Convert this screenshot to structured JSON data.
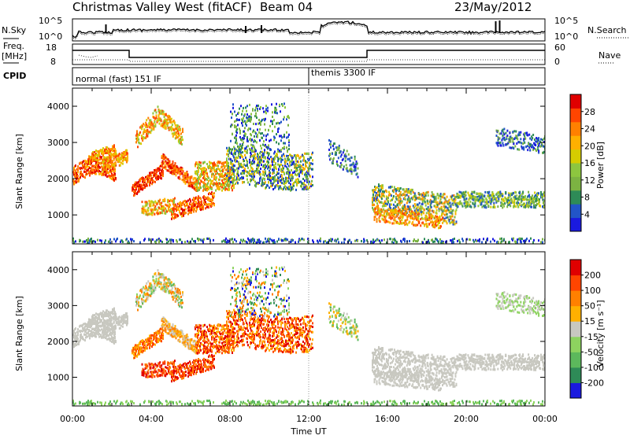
{
  "header": {
    "title": "Christmas Valley West (fitACF)",
    "beam": "Beam 04",
    "date": "23/May/2012"
  },
  "nsky_panel": {
    "left_label": "N.Sky",
    "right_label": "N.Search",
    "tick_top": "10^5",
    "tick_bottom": "10^0"
  },
  "freq_panel": {
    "left_label_line1": "Freq.",
    "left_label_line2": "[MHz]",
    "right_label": "Nave",
    "left_ticks": [
      "18",
      "8"
    ],
    "right_ticks": [
      "60",
      "0"
    ]
  },
  "cpid_panel": {
    "label": "CPID",
    "modes": [
      {
        "name": "normal (fast) 151 IF",
        "start": "00:00",
        "end": "12:00"
      },
      {
        "name": "themis 3300 IF",
        "start": "12:00",
        "end": "24:00"
      }
    ]
  },
  "chart_data": [
    {
      "type": "heatmap",
      "panel": "power",
      "ylabel": "Slant Range [km]",
      "xlabel": "Time UT",
      "x_ticks": [
        "00:00",
        "04:00",
        "08:00",
        "12:00",
        "16:00",
        "20:00",
        "00:00"
      ],
      "y_ticks": [
        "1000",
        "2000",
        "3000",
        "4000"
      ],
      "ylim": [
        200,
        4500
      ],
      "xlim_hours": [
        0,
        24
      ],
      "colorbar": {
        "label": "Power [dB]",
        "ticks": [
          "4",
          "8",
          "12",
          "16",
          "20",
          "24",
          "28"
        ],
        "colors": [
          "#1a1adf",
          "#2255c8",
          "#2e8b57",
          "#7cb342",
          "#8dc63f",
          "#d6cc00",
          "#ffb000",
          "#ff8000",
          "#ff4500",
          "#e00000"
        ]
      }
    },
    {
      "type": "heatmap",
      "panel": "velocity",
      "ylabel": "Slant Range [km]",
      "xlabel": "Time UT",
      "x_ticks": [
        "00:00",
        "04:00",
        "08:00",
        "12:00",
        "16:00",
        "20:00",
        "00:00"
      ],
      "y_ticks": [
        "1000",
        "2000",
        "3000",
        "4000"
      ],
      "ylim": [
        200,
        4500
      ],
      "xlim_hours": [
        0,
        24
      ],
      "colorbar": {
        "label": "Velocity [m s⁻¹]",
        "ticks": [
          "200",
          "100",
          "50",
          "15",
          "-15",
          "-50",
          "-100",
          "-200"
        ],
        "colors": [
          "#1a1adf",
          "#2e8b57",
          "#5cb85c",
          "#8dd35f",
          "#c8c8c0",
          "#ffb000",
          "#ff8000",
          "#ff4500",
          "#e00000"
        ]
      }
    }
  ]
}
